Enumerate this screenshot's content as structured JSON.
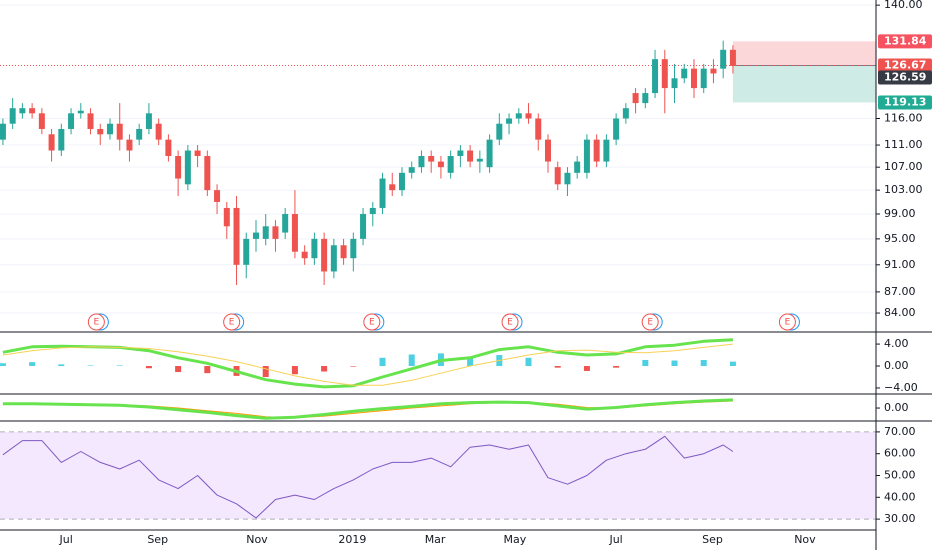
{
  "chart_data": [
    {
      "type": "candlestick",
      "x": [
        0,
        1,
        2,
        3,
        4,
        5,
        6,
        7,
        8,
        9,
        10,
        11,
        12,
        13,
        14,
        15,
        16,
        17,
        18,
        19,
        20,
        21,
        22,
        23,
        24,
        25,
        26,
        27,
        28,
        29,
        30,
        31,
        32,
        33,
        34,
        35,
        36,
        37,
        38,
        39,
        40,
        41,
        42,
        43,
        44,
        45,
        46,
        47,
        48,
        49,
        50,
        51,
        52,
        53,
        54,
        55,
        56,
        57,
        58,
        59,
        60,
        61,
        62,
        63,
        64,
        65,
        66,
        67,
        68,
        69,
        70,
        71,
        72,
        73,
        74,
        75
      ],
      "open": [
        112,
        115,
        117,
        118,
        117,
        113,
        110,
        114,
        117,
        117,
        114,
        113,
        115,
        112,
        112,
        114,
        115,
        112,
        109,
        104,
        110,
        109,
        103,
        100,
        100,
        91,
        95,
        95,
        97,
        96,
        99,
        93,
        92,
        95,
        90,
        94,
        92,
        95,
        99,
        100,
        104,
        103,
        106,
        107,
        109,
        108,
        106,
        109,
        110,
        108,
        107,
        112,
        115,
        116,
        117,
        116,
        112,
        107,
        104,
        106,
        106,
        112,
        108,
        112,
        116,
        121,
        119,
        121,
        128,
        122,
        124,
        126,
        122,
        126,
        126,
        130
      ],
      "high": [
        116,
        120,
        119,
        119,
        118,
        114,
        115,
        118,
        119,
        118,
        115,
        116,
        119,
        113,
        115,
        119,
        116,
        113,
        110,
        111,
        111,
        110,
        104,
        101,
        102,
        96,
        98,
        99,
        98,
        100,
        103,
        94,
        96,
        96,
        95,
        95,
        96,
        100,
        101,
        106,
        106,
        107,
        108,
        110,
        110,
        109,
        110,
        111,
        111,
        110,
        113,
        117,
        117,
        118,
        119,
        117,
        113,
        108,
        107,
        109,
        113,
        113,
        113,
        117,
        119,
        122,
        122,
        130,
        130,
        127,
        127,
        128,
        127,
        128,
        132,
        131
      ],
      "low": [
        111,
        114,
        116,
        116,
        113,
        108,
        109,
        113,
        116,
        113,
        111,
        112,
        110,
        108,
        111,
        113,
        111,
        108,
        102,
        103,
        107,
        102,
        99,
        95,
        88,
        89,
        93,
        94,
        93,
        95,
        92,
        91,
        91,
        88,
        89,
        91,
        90,
        94,
        97,
        99,
        102,
        102,
        105,
        106,
        106,
        105,
        105,
        107,
        107,
        106,
        106,
        111,
        113,
        115,
        115,
        110,
        106,
        103,
        102,
        105,
        105,
        107,
        107,
        111,
        115,
        117,
        118,
        120,
        117,
        119,
        123,
        120,
        121,
        123,
        124,
        125
      ],
      "close": [
        115,
        118,
        118,
        117,
        114,
        110,
        114,
        117,
        117.5,
        114,
        113,
        115,
        112,
        110,
        114,
        117,
        112,
        109,
        105,
        110,
        109,
        103,
        101,
        97,
        91,
        95,
        96,
        97,
        95,
        99,
        93,
        92,
        95,
        90,
        94,
        92,
        95,
        99,
        100,
        105,
        103,
        106,
        107,
        109,
        108,
        107,
        109,
        110,
        108,
        108.5,
        112,
        115,
        116,
        117,
        116,
        112,
        108,
        104,
        106,
        108,
        112,
        108,
        112,
        116,
        118,
        119,
        121,
        128,
        122,
        124,
        126,
        122,
        126,
        125,
        130,
        126.59
      ],
      "colors": {
        "up": "#26a69a",
        "down": "#ef5350"
      },
      "xlim": [
        -0.3,
        89.7
      ],
      "ylim": [
        81.4,
        141.2
      ],
      "log_scale": true,
      "yticks": [
        {
          "value": 140,
          "label": "140.00"
        },
        {
          "value": 116,
          "label": "116.00"
        },
        {
          "value": 111,
          "label": "111.00"
        },
        {
          "value": 107,
          "label": "107.00"
        },
        {
          "value": 103,
          "label": "103.00"
        },
        {
          "value": 99,
          "label": "99.00"
        },
        {
          "value": 95,
          "label": "95.00"
        },
        {
          "value": 91,
          "label": "91.00"
        },
        {
          "value": 87,
          "label": "87.00"
        },
        {
          "value": 84,
          "label": "84.00"
        }
      ],
      "grid": true,
      "price_lines": [
        {
          "value": 131.84,
          "label": "131.84",
          "color": "#f7525f"
        },
        {
          "value": 126.67,
          "label": "126.67",
          "color": "#ef5350"
        },
        {
          "value": 126.59,
          "label": "126.59",
          "color": "#363a45"
        },
        {
          "value": 119.13,
          "label": "119.13",
          "color": "#22ab94"
        }
      ],
      "position_start": 75,
      "events": [
        {
          "x": 9.6,
          "label": "E"
        },
        {
          "x": 23.5,
          "label": "E"
        },
        {
          "x": 37.9,
          "label": "E"
        },
        {
          "x": 52.1,
          "label": "E"
        },
        {
          "x": 66.5,
          "label": "E"
        },
        {
          "x": 80.6,
          "label": "E"
        }
      ]
    },
    {
      "type": "macd",
      "x": [
        0,
        3,
        6,
        9,
        12,
        15,
        18,
        21,
        24,
        27,
        30,
        33,
        36,
        39,
        42,
        45,
        48,
        51,
        54,
        57,
        60,
        63,
        66,
        69,
        72,
        75
      ],
      "series": [
        {
          "color": "#66e34d",
          "width": 3,
          "values": [
            2.5,
            3.5,
            3.6,
            3.5,
            3.4,
            2.8,
            1.5,
            0.5,
            -1.0,
            -2.5,
            -3.3,
            -3.8,
            -3.6,
            -2.0,
            -0.5,
            1.0,
            1.5,
            3.0,
            3.5,
            2.5,
            2.0,
            2.2,
            3.5,
            3.8,
            4.5,
            4.8
          ]
        },
        {
          "color": "#f7d154",
          "width": 1,
          "values": [
            2.0,
            2.8,
            3.3,
            3.5,
            3.4,
            3.2,
            2.6,
            1.8,
            0.8,
            -0.5,
            -1.8,
            -2.8,
            -3.5,
            -3.5,
            -2.6,
            -1.3,
            0.0,
            1.0,
            2.0,
            2.8,
            2.9,
            2.5,
            2.4,
            2.8,
            3.4,
            4.0
          ]
        }
      ],
      "histogram": [
        0.5,
        0.7,
        0.3,
        0.1,
        0.1,
        -0.4,
        -1.1,
        -1.3,
        -1.8,
        -2.0,
        -1.5,
        -1.0,
        -0.1,
        1.5,
        2.1,
        2.3,
        1.5,
        2.0,
        1.5,
        -0.3,
        -0.9,
        -0.3,
        1.1,
        1.0,
        1.1,
        0.8
      ],
      "histogram_colors": {
        "positive": "#4dd0e1",
        "negative": "#ef5350"
      },
      "ylim": [
        -5.1,
        6.2
      ],
      "yticks": [
        {
          "value": 4,
          "label": "4.00"
        },
        {
          "value": 0,
          "label": "0.00"
        },
        {
          "value": -4,
          "label": "−4.00"
        }
      ]
    },
    {
      "type": "line",
      "x": [
        0,
        3,
        6,
        9,
        12,
        15,
        18,
        21,
        24,
        27,
        30,
        33,
        36,
        39,
        42,
        45,
        48,
        51,
        54,
        57,
        60,
        63,
        66,
        69,
        72,
        75
      ],
      "series": [
        {
          "color": "#ff9800",
          "width": 1,
          "values": [
            0.7,
            0.8,
            0.8,
            0.7,
            0.6,
            0.4,
            0.0,
            -0.5,
            -1.0,
            -1.6,
            -1.8,
            -1.5,
            -1.0,
            -0.5,
            0.0,
            0.4,
            0.8,
            1.0,
            1.1,
            0.7,
            0.1,
            0.0,
            0.4,
            0.8,
            1.1,
            1.3
          ]
        },
        {
          "color": "#66e34d",
          "width": 3,
          "values": [
            0.8,
            0.8,
            0.7,
            0.6,
            0.5,
            0.2,
            -0.3,
            -0.8,
            -1.4,
            -1.9,
            -1.7,
            -1.2,
            -0.6,
            -0.1,
            0.3,
            0.8,
            1.0,
            1.1,
            1.0,
            0.4,
            -0.2,
            0.1,
            0.6,
            1.0,
            1.3,
            1.5
          ]
        }
      ],
      "ylim": [
        -2.4,
        2.6
      ],
      "yticks": [
        {
          "value": 0,
          "label": "0.00"
        }
      ]
    },
    {
      "type": "rsi",
      "x": [
        0,
        2,
        4,
        6,
        8,
        10,
        12,
        14,
        16,
        18,
        20,
        22,
        24,
        26,
        28,
        30,
        32,
        34,
        36,
        38,
        40,
        42,
        44,
        46,
        48,
        50,
        52,
        54,
        56,
        58,
        60,
        62,
        64,
        66,
        68,
        70,
        72,
        74,
        75
      ],
      "values": [
        59.5,
        66,
        66,
        56,
        61,
        56,
        53,
        57,
        48,
        44,
        50,
        41,
        37,
        30.5,
        39,
        41,
        39,
        44,
        48,
        53,
        56,
        56,
        58,
        54,
        63,
        64,
        62,
        64,
        49,
        46,
        50,
        57,
        60,
        62,
        68,
        58,
        60,
        64,
        61
      ],
      "color": "#7e57c2",
      "band": [
        30,
        70
      ],
      "band_color": "#f3e8fd",
      "ylim": [
        25,
        75
      ],
      "yticks": [
        {
          "value": 70,
          "label": "70.00"
        },
        {
          "value": 60,
          "label": "60.00"
        },
        {
          "value": 50,
          "label": "50.00"
        },
        {
          "value": 40,
          "label": "40.00"
        },
        {
          "value": 30,
          "label": "30.00"
        }
      ],
      "xticks": [
        {
          "value": 6.5,
          "label": "Jul"
        },
        {
          "value": 15.9,
          "label": "Sep"
        },
        {
          "value": 26.1,
          "label": "Nov"
        },
        {
          "value": 35.9,
          "label": "2019"
        },
        {
          "value": 44.4,
          "label": "Mar"
        },
        {
          "value": 52.6,
          "label": "May"
        },
        {
          "value": 63.0,
          "label": "Jul"
        },
        {
          "value": 72.9,
          "label": "Sep"
        },
        {
          "value": 82.4,
          "label": "Nov"
        }
      ]
    }
  ]
}
